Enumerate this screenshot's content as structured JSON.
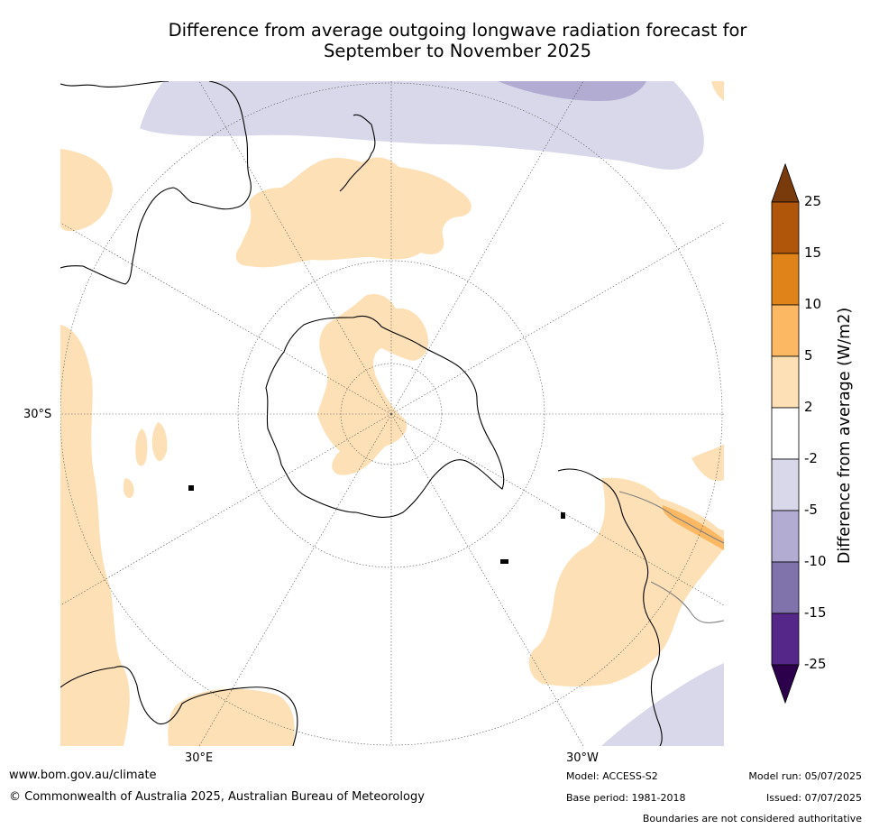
{
  "title_line1": "Difference from average outgoing longwave radiation forecast for",
  "title_line2": "September to November 2025",
  "lat_label": "30°S",
  "lon_labels": [
    "30°E",
    "30°W"
  ],
  "colorbar": {
    "title": "Difference from average (W/m2)",
    "ticks": [
      "25",
      "15",
      "10",
      "5",
      "2",
      "-2",
      "-5",
      "-10",
      "-15",
      "-25"
    ],
    "colors": [
      "#7a3b0c",
      "#b0560b",
      "#e0841a",
      "#fdb863",
      "#fde0b5",
      "#ffffff",
      "#d8d8ea",
      "#b2abd2",
      "#8073ac",
      "#542788",
      "#2d004b"
    ]
  },
  "footer": {
    "url": "www.bom.gov.au/climate",
    "copyright": "© Commonwealth of Australia 2025, Australian Bureau of Meteorology",
    "model": "Model: ACCESS-S2",
    "base_period": "Base period: 1981-2018",
    "model_run": "Model run: 05/07/2025",
    "issued": "Issued: 07/07/2025",
    "disclaimer": "Boundaries are not considered authoritative"
  }
}
